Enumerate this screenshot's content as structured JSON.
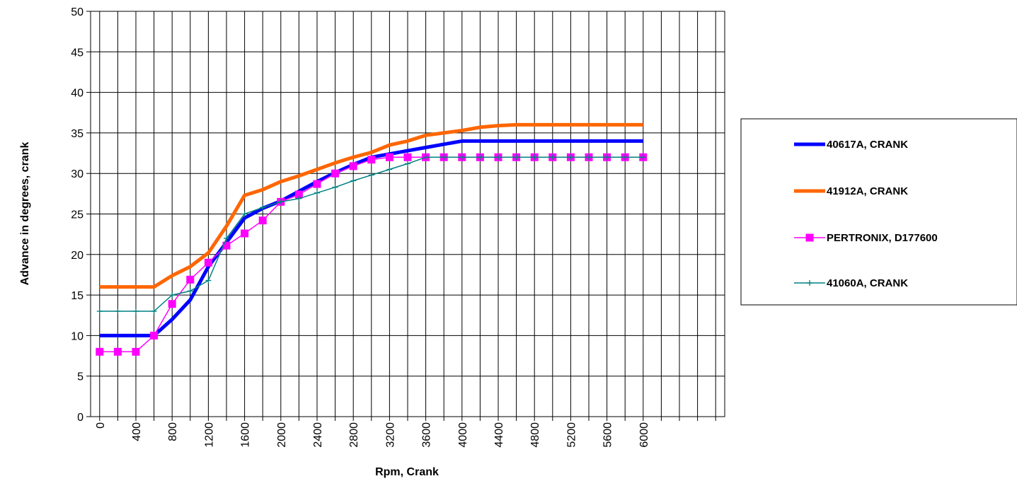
{
  "chart_data": {
    "type": "line",
    "title": "",
    "xlabel": "Rpm, Crank",
    "ylabel": "Advance in degrees, crank",
    "ylim": [
      0,
      50
    ],
    "y_ticks": [
      0,
      5,
      10,
      15,
      20,
      25,
      30,
      35,
      40,
      45,
      50
    ],
    "x_ticks": [
      "0",
      "400",
      "800",
      "1200",
      "1600",
      "2000",
      "2400",
      "2800",
      "3200",
      "3600",
      "4000",
      "4400",
      "4800",
      "5200",
      "5600",
      "6000"
    ],
    "x_range": [
      -100,
      6900
    ],
    "x_grid_step": 200,
    "grid": true,
    "legend_position": "right",
    "series": [
      {
        "name": "40617A, CRANK",
        "color": "#0000FF",
        "marker": "none",
        "x": [
          0,
          200,
          400,
          600,
          800,
          1000,
          1200,
          1400,
          1600,
          1800,
          2000,
          2200,
          2400,
          2600,
          2800,
          3000,
          3200,
          3400,
          3600,
          3800,
          4000,
          4200,
          4400,
          4600,
          4800,
          5000,
          5200,
          5400,
          5600,
          5800,
          6000
        ],
        "y": [
          10,
          10,
          10,
          10,
          12,
          14.4,
          18.5,
          21.5,
          24.5,
          25.7,
          26.6,
          27.8,
          29,
          30.1,
          31.1,
          32,
          32.4,
          32.8,
          33.2,
          33.6,
          34,
          34,
          34,
          34,
          34,
          34,
          34,
          34,
          34,
          34,
          34
        ]
      },
      {
        "name": "41912A, CRANK",
        "color": "#FF6600",
        "marker": "none",
        "x": [
          0,
          200,
          400,
          600,
          800,
          1000,
          1200,
          1400,
          1600,
          1800,
          2000,
          2200,
          2400,
          2600,
          2800,
          3000,
          3200,
          3400,
          3600,
          3800,
          4000,
          4200,
          4400,
          4600,
          4800,
          5000,
          5200,
          5400,
          5600,
          5800,
          6000
        ],
        "y": [
          16,
          16,
          16,
          16,
          17.4,
          18.5,
          20.2,
          23.5,
          27.3,
          28,
          29,
          29.7,
          30.5,
          31.3,
          32,
          32.6,
          33.5,
          34,
          34.7,
          35,
          35.3,
          35.7,
          35.9,
          36,
          36,
          36,
          36,
          36,
          36,
          36,
          36
        ]
      },
      {
        "name": "PERTRONIX, D177600",
        "color": "#FF00FF",
        "marker": "square",
        "x": [
          0,
          200,
          400,
          600,
          800,
          1000,
          1200,
          1400,
          1600,
          1800,
          2000,
          2200,
          2400,
          2600,
          2800,
          3000,
          3200,
          3400,
          3600,
          3800,
          4000,
          4200,
          4400,
          4600,
          4800,
          5000,
          5200,
          5400,
          5600,
          5800,
          6000
        ],
        "y": [
          8,
          8,
          8,
          10,
          13.9,
          16.9,
          19,
          21.1,
          22.6,
          24.2,
          26.5,
          27.4,
          28.7,
          30,
          30.9,
          31.7,
          32,
          32,
          32,
          32,
          32,
          32,
          32,
          32,
          32,
          32,
          32,
          32,
          32,
          32,
          32
        ]
      },
      {
        "name": "41060A, CRANK",
        "color": "#008080",
        "marker": "plus",
        "x": [
          0,
          200,
          400,
          600,
          800,
          1000,
          1200,
          1400,
          1600,
          1800,
          2000,
          2200,
          2400,
          2600,
          2800,
          3000,
          3200,
          3400,
          3600,
          3800,
          4000,
          4200,
          4400,
          4600,
          4800,
          5000,
          5200,
          5400,
          5600,
          5800,
          6000
        ],
        "y": [
          13,
          13,
          13,
          13,
          15,
          15.5,
          16.8,
          22,
          25,
          25.8,
          26.5,
          26.9,
          27.6,
          28.3,
          29.1,
          29.8,
          30.5,
          31.2,
          32,
          32,
          32,
          32,
          32,
          32,
          32,
          32,
          32,
          32,
          32,
          32,
          32
        ]
      }
    ]
  }
}
